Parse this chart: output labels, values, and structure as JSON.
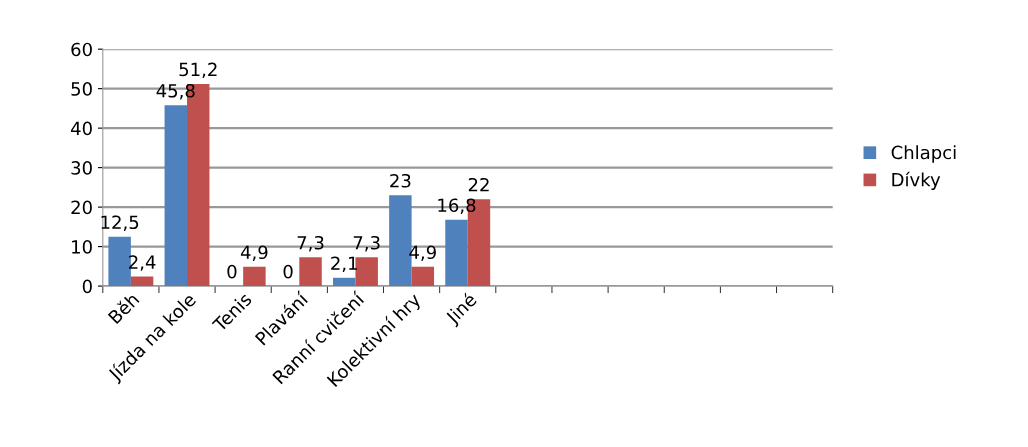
{
  "chart_data": {
    "type": "bar",
    "categories": [
      "Běh",
      "Jízda na kole",
      "Tenis",
      "Plavání",
      "Ranní cvičení",
      "Kolektivní hry",
      "Jiné",
      null,
      null,
      null,
      null,
      null,
      null
    ],
    "series": [
      {
        "name": "Chlapci",
        "color": "#4f81bd",
        "values": [
          12.5,
          45.8,
          0,
          0,
          2.1,
          23,
          16.8,
          null,
          null,
          null,
          null,
          null,
          null
        ],
        "value_labels": [
          "12,5",
          "45,8",
          "0",
          "0",
          "2,1",
          "23",
          "16,8",
          null,
          null,
          null,
          null,
          null,
          null
        ]
      },
      {
        "name": "Dívky",
        "color": "#c0504d",
        "values": [
          2.4,
          51.2,
          4.9,
          7.3,
          7.3,
          4.9,
          22,
          null,
          null,
          null,
          null,
          null,
          null
        ],
        "value_labels": [
          "2,4",
          "51,2",
          "4,9",
          "7,3",
          "7,3",
          "4,9",
          "22",
          null,
          null,
          null,
          null,
          null,
          null
        ]
      }
    ],
    "ylim": [
      0,
      60
    ],
    "yticks": [
      0,
      10,
      20,
      30,
      40,
      50,
      60
    ],
    "grid": "y",
    "legend": "right"
  }
}
